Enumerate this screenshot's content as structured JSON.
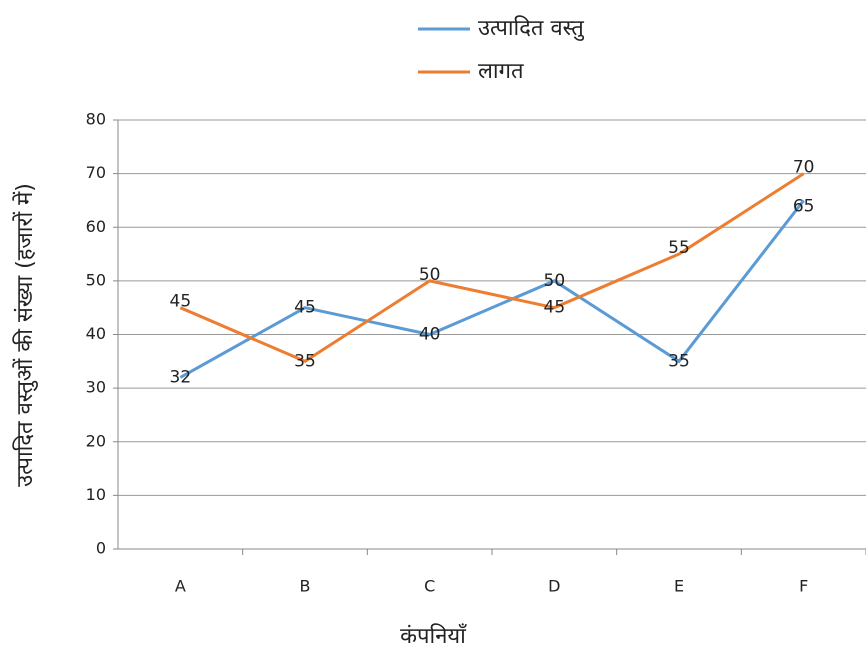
{
  "chart_data": {
    "type": "line",
    "categories": [
      "A",
      "B",
      "C",
      "D",
      "E",
      "F"
    ],
    "series": [
      {
        "name": "उत्पादित वस्तु",
        "color": "#5b9bd5",
        "values": [
          32,
          45,
          40,
          50,
          35,
          65
        ]
      },
      {
        "name": "लागत",
        "color": "#ed7d31",
        "values": [
          45,
          35,
          50,
          45,
          55,
          70
        ]
      }
    ],
    "ylim": [
      0,
      80
    ],
    "yticks": [
      0,
      10,
      20,
      30,
      40,
      50,
      60,
      70,
      80
    ],
    "y_label": "उत्पादित वस्तुओं की संख्या (हजारों में)",
    "x_label": "कंपनियाँ",
    "grid": true,
    "legend": "top"
  }
}
